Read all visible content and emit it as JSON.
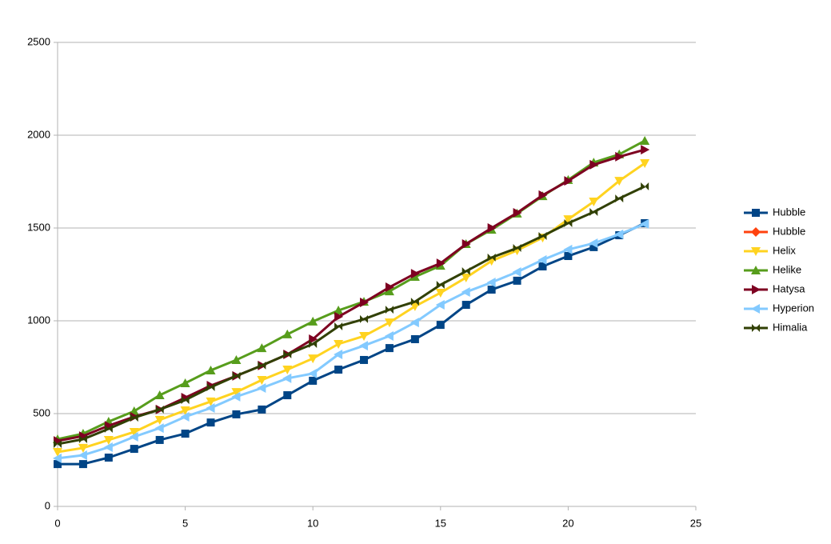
{
  "chart_data": {
    "type": "line",
    "x": [
      0,
      1,
      2,
      3,
      4,
      5,
      6,
      7,
      8,
      9,
      10,
      11,
      12,
      13,
      14,
      15,
      16,
      17,
      18,
      19,
      20,
      21,
      22,
      23
    ],
    "xlim": [
      0,
      25
    ],
    "xticks": [
      0,
      5,
      10,
      15,
      20,
      25
    ],
    "ylim": [
      0,
      2500
    ],
    "yticks": [
      0,
      500,
      1000,
      1500,
      2000,
      2500
    ],
    "grid": true,
    "legend": "right",
    "series": [
      {
        "name": "Hubble",
        "color": "#004586",
        "marker": "square",
        "values": [
          228,
          228,
          263,
          310,
          358,
          392,
          452,
          496,
          522,
          599,
          677,
          737,
          789,
          853,
          901,
          978,
          1086,
          1168,
          1216,
          1293,
          1349,
          1397,
          1461,
          1526
        ]
      },
      {
        "name": "Hubble",
        "color": "#ff420e",
        "marker": "diamond",
        "values": [
          null,
          null,
          null,
          null,
          null,
          null,
          null,
          null,
          null,
          null,
          null,
          null,
          null,
          null,
          null,
          null,
          null,
          null,
          null,
          null,
          null,
          null,
          null,
          null
        ]
      },
      {
        "name": "Helix",
        "color": "#ffd320",
        "marker": "triangle-down",
        "values": [
          293,
          315,
          358,
          401,
          466,
          517,
          565,
          616,
          681,
          737,
          797,
          875,
          918,
          991,
          1078,
          1151,
          1233,
          1323,
          1379,
          1448,
          1547,
          1642,
          1754,
          1849
        ]
      },
      {
        "name": "Helike",
        "color": "#579d1c",
        "marker": "triangle-up",
        "values": [
          362,
          392,
          457,
          513,
          599,
          664,
          733,
          789,
          853,
          927,
          996,
          1056,
          1103,
          1159,
          1237,
          1297,
          1414,
          1491,
          1578,
          1672,
          1759,
          1853,
          1897,
          1970
        ]
      },
      {
        "name": "Hatysa",
        "color": "#7e0021",
        "marker": "triangle-right",
        "values": [
          353,
          379,
          435,
          483,
          522,
          586,
          651,
          703,
          759,
          819,
          901,
          1022,
          1099,
          1181,
          1254,
          1310,
          1414,
          1500,
          1582,
          1677,
          1754,
          1841,
          1884,
          1922
        ]
      },
      {
        "name": "Hyperion",
        "color": "#83caff",
        "marker": "triangle-left",
        "values": [
          259,
          276,
          319,
          375,
          422,
          483,
          530,
          591,
          638,
          690,
          716,
          819,
          866,
          918,
          991,
          1086,
          1155,
          1207,
          1263,
          1328,
          1384,
          1418,
          1466,
          1522
        ]
      },
      {
        "name": "Himalia",
        "color": "#314004",
        "marker": "bowtie",
        "values": [
          336,
          362,
          418,
          478,
          522,
          573,
          642,
          703,
          759,
          819,
          875,
          970,
          1009,
          1060,
          1103,
          1194,
          1267,
          1341,
          1392,
          1457,
          1526,
          1586,
          1659,
          1724
        ]
      }
    ]
  }
}
